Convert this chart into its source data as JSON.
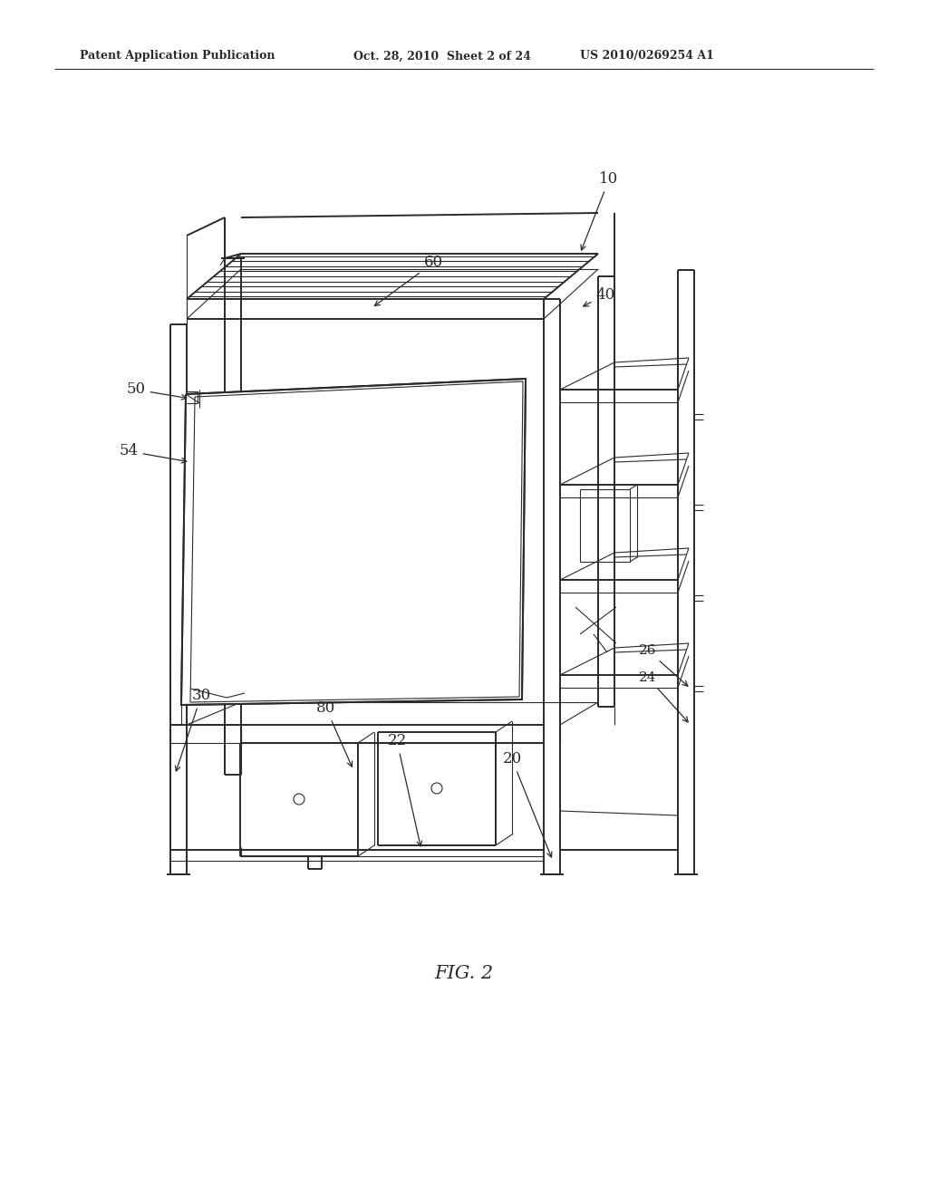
{
  "background_color": "#ffffff",
  "header_left": "Patent Application Publication",
  "header_mid": "Oct. 28, 2010  Sheet 2 of 24",
  "header_right": "US 2010/0269254 A1",
  "figure_label": "FIG. 2",
  "line_color": "#2a2a2a",
  "lw_thick": 2.0,
  "lw_med": 1.4,
  "lw_thin": 0.8
}
